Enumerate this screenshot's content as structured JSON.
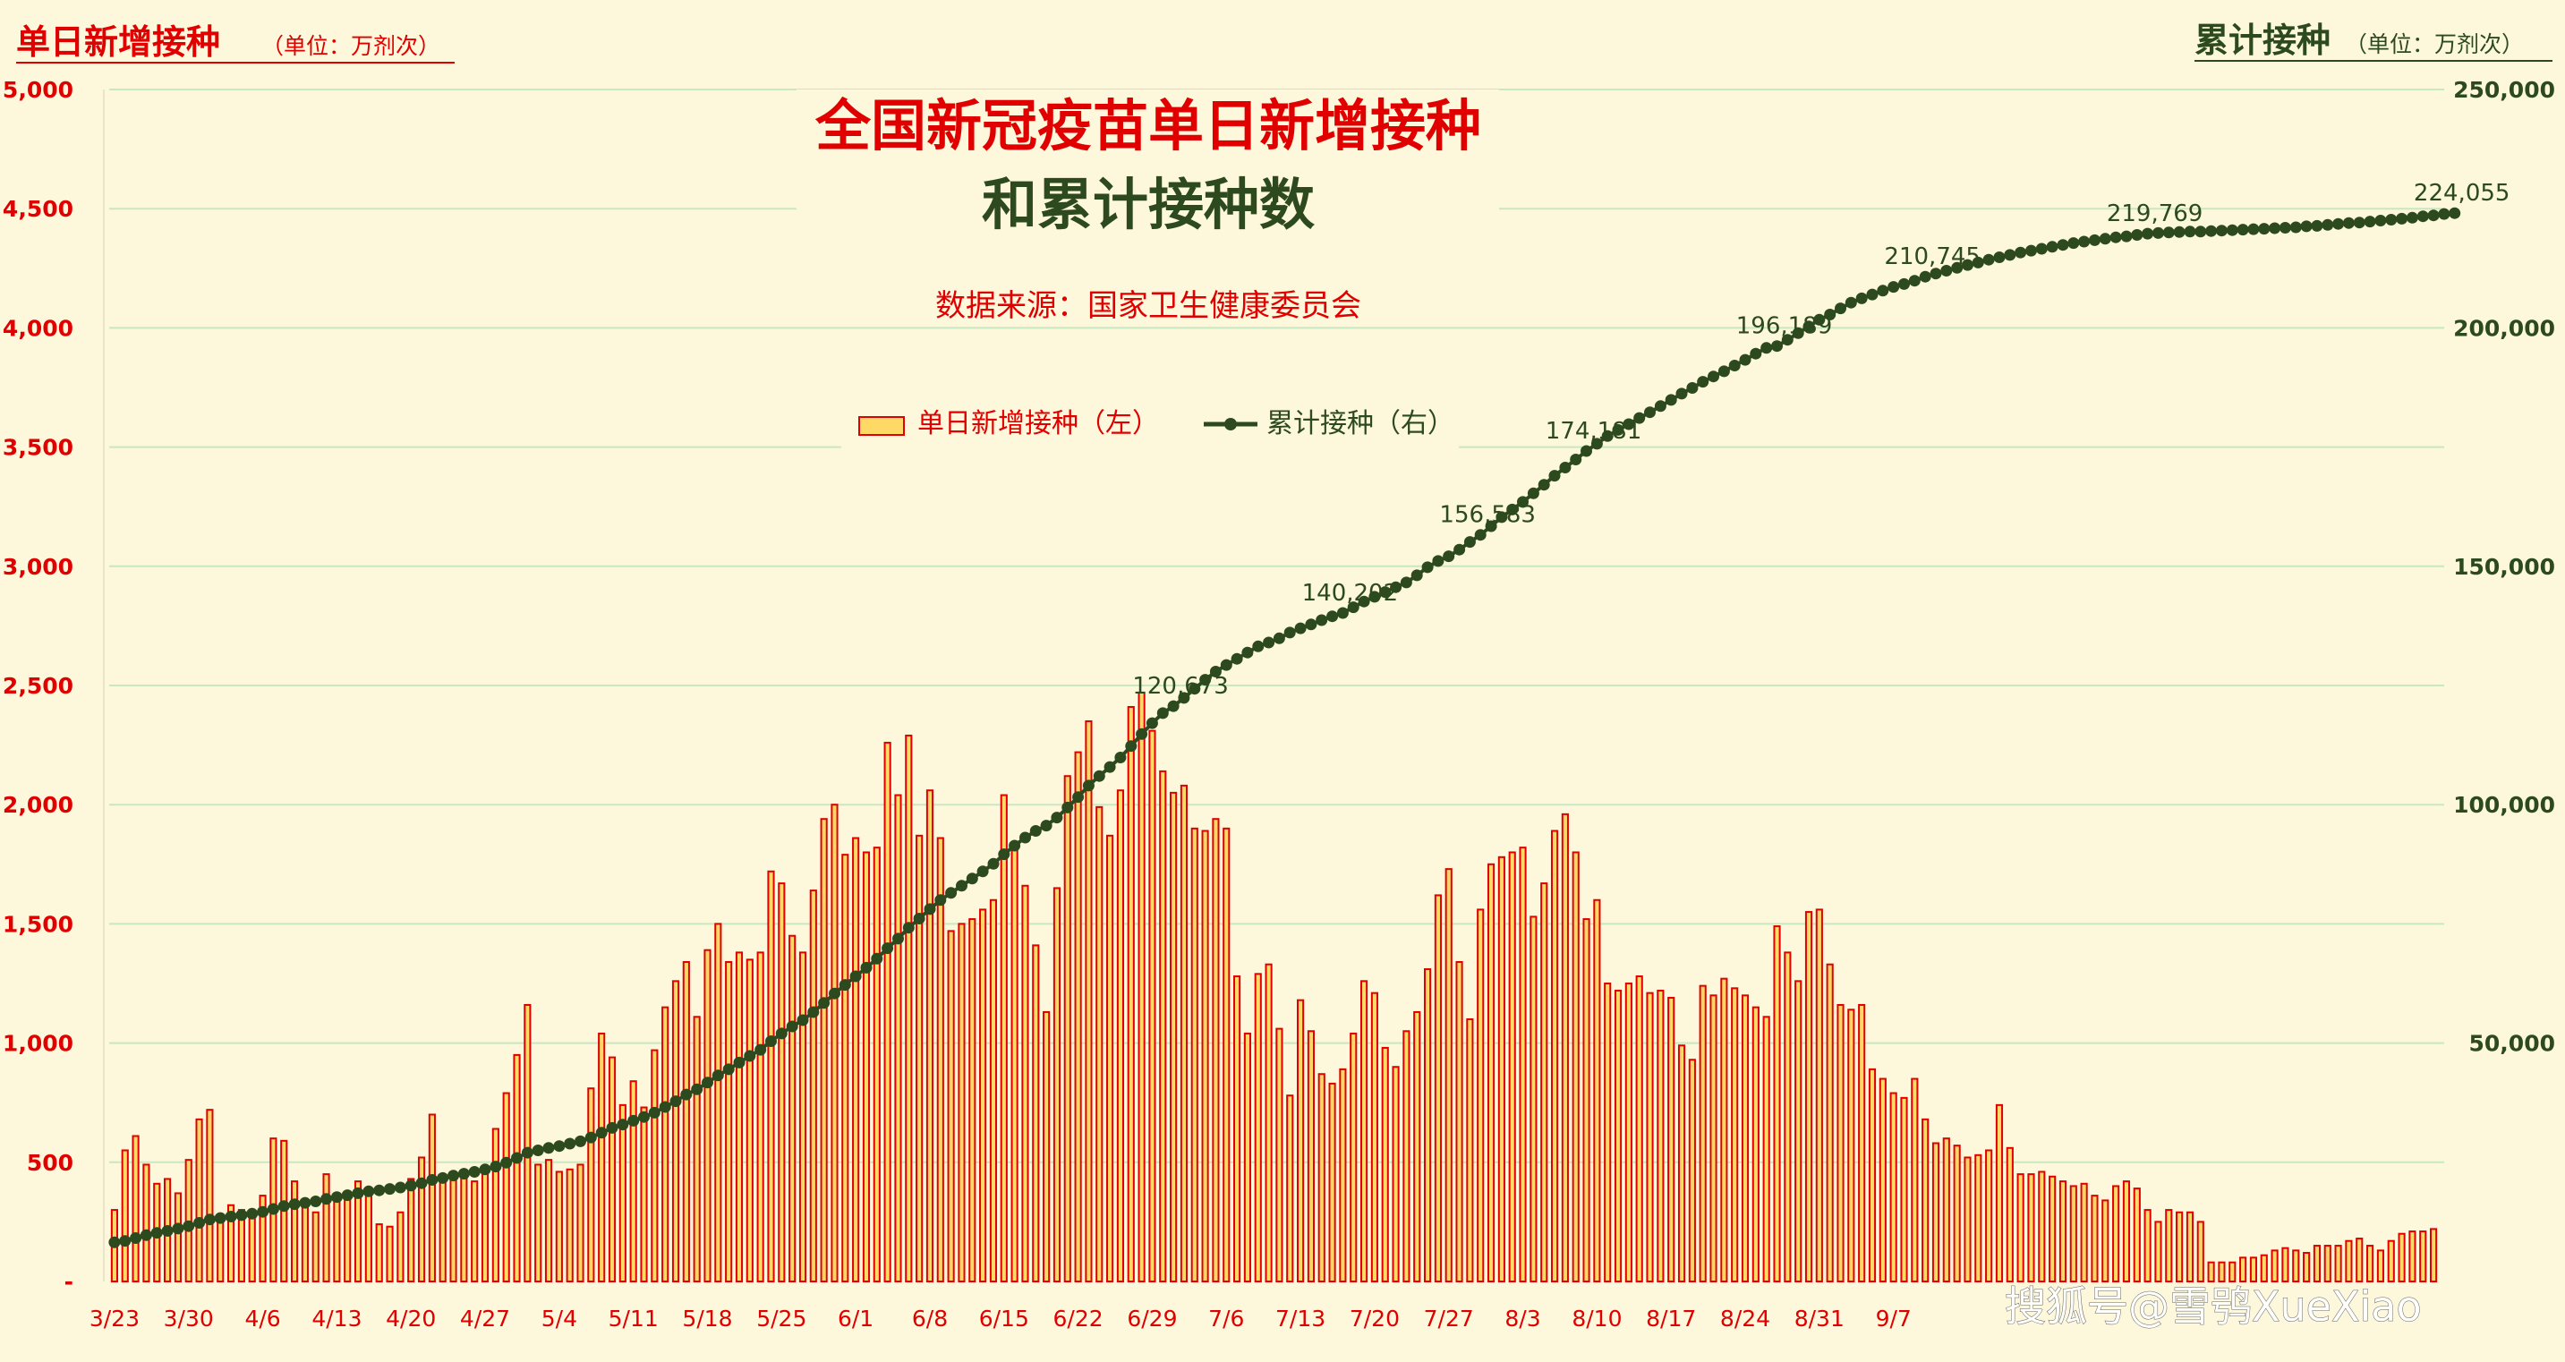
{
  "watermark": "搜狐号@雪鸮XueXiao",
  "chart_data": {
    "type": "bar+line",
    "title": "全国新冠疫苗单日新增接种",
    "title_line2": "和累计接种数",
    "source": "数据来源：国家卫生健康委员会",
    "y_left": {
      "label": "单日新增接种",
      "unit": "（单位：万剂次）",
      "range": [
        0,
        5000
      ],
      "ticks": [
        "-",
        "500",
        "1,000",
        "1,500",
        "2,000",
        "2,500",
        "3,000",
        "3,500",
        "4,000",
        "4,500",
        "5,000"
      ],
      "color": "#e00000"
    },
    "y_right": {
      "label": "累计接种",
      "unit": "（单位：万剂次）",
      "range": [
        0,
        250000
      ],
      "ticks": [
        "",
        "50,000",
        "100,000",
        "150,000",
        "200,000",
        "250,000"
      ],
      "color": "#2d4a1e"
    },
    "grid": "horizontal",
    "legend": {
      "position": "top-center",
      "entries": [
        {
          "label": "单日新增接种（左）",
          "color": "#ffd966",
          "edge": "#e00000",
          "kind": "bar"
        },
        {
          "label": "累计接种（右）",
          "color": "#2d4a1e",
          "kind": "line-marker"
        }
      ]
    },
    "x_tick_labels": [
      "3/23",
      "3/30",
      "4/6",
      "4/13",
      "4/20",
      "4/27",
      "5/4",
      "5/11",
      "5/18",
      "5/25",
      "6/1",
      "6/8",
      "6/15",
      "6/22",
      "6/29",
      "7/6",
      "7/13",
      "7/20",
      "7/27",
      "8/3",
      "8/10",
      "8/17",
      "8/24",
      "8/31",
      "9/7"
    ],
    "series": [
      {
        "name": "单日新增接种（左）",
        "axis": "left",
        "values": [
          300,
          550,
          610,
          490,
          410,
          430,
          370,
          510,
          680,
          720,
          280,
          320,
          300,
          280,
          360,
          600,
          590,
          420,
          320,
          290,
          450,
          370,
          370,
          420,
          370,
          240,
          230,
          290,
          430,
          520,
          700,
          420,
          450,
          450,
          420,
          460,
          640,
          790,
          950,
          1160,
          490,
          510,
          460,
          470,
          490,
          810,
          1040,
          940,
          740,
          840,
          730,
          970,
          1150,
          1260,
          1340,
          1110,
          1390,
          1500,
          1340,
          1380,
          1350,
          1380,
          1720,
          1670,
          1450,
          1380,
          1640,
          1940,
          2000,
          1790,
          1860,
          1800,
          1820,
          2260,
          2040,
          2290,
          1870,
          2060,
          1860,
          1470,
          1500,
          1520,
          1560,
          1600,
          2040,
          1810,
          1660,
          1410,
          1130,
          1650,
          2120,
          2220,
          2350,
          1990,
          1870,
          2060,
          2410,
          2470,
          2310,
          2140,
          2050,
          2080,
          1900,
          1890,
          1940,
          1900,
          1280,
          1040,
          1290,
          1330,
          1060,
          780,
          1180,
          1050,
          870,
          830,
          890,
          1040,
          1260,
          1210,
          980,
          900,
          1050,
          1130,
          1310,
          1620,
          1730,
          1340,
          1100,
          1560,
          1750,
          1780,
          1800,
          1820,
          1530,
          1670,
          1890,
          1960,
          1800,
          1520,
          1600,
          1250,
          1220,
          1250,
          1280,
          1210,
          1220,
          1190,
          990,
          930,
          1240,
          1200,
          1270,
          1230,
          1200,
          1150,
          1110,
          1490,
          1380,
          1260,
          1550,
          1560,
          1330,
          1160,
          1140,
          1160,
          890,
          850,
          790,
          770,
          850,
          680,
          580,
          600,
          570,
          520,
          530,
          550,
          740,
          560,
          450,
          450,
          460,
          440,
          420,
          400,
          410,
          360,
          340,
          400,
          420,
          390,
          300,
          250,
          300,
          290,
          290,
          250,
          80,
          80,
          80,
          100,
          100,
          110,
          130,
          140,
          130,
          120,
          150,
          150,
          150,
          170,
          180,
          150,
          130,
          170,
          200,
          210,
          210,
          220
        ]
      },
      {
        "name": "累计接种（右）",
        "axis": "right",
        "values": [
          8200,
          8500,
          9100,
          9700,
          10200,
          10600,
          11100,
          11600,
          12300,
          13000,
          13300,
          13600,
          13900,
          14200,
          14600,
          15200,
          15800,
          16200,
          16500,
          16800,
          17300,
          17700,
          18100,
          18500,
          18900,
          19100,
          19400,
          19700,
          20100,
          20600,
          21300,
          21700,
          22200,
          22600,
          23000,
          23500,
          24100,
          24900,
          25900,
          27000,
          27500,
          28000,
          28400,
          28900,
          29400,
          30200,
          31200,
          32200,
          32900,
          33700,
          34500,
          35400,
          36600,
          37800,
          39200,
          40300,
          41700,
          43200,
          44500,
          45900,
          47300,
          48600,
          50400,
          52000,
          53500,
          54800,
          56500,
          58400,
          60400,
          62200,
          64000,
          65800,
          67700,
          69900,
          71900,
          74200,
          76100,
          78100,
          80000,
          81500,
          83000,
          84500,
          86000,
          87600,
          89600,
          91400,
          93100,
          94500,
          95600,
          97300,
          99400,
          101600,
          104000,
          106000,
          107900,
          109900,
          112300,
          114800,
          117100,
          119200,
          120673,
          122400,
          124300,
          126200,
          127900,
          129300,
          130600,
          131900,
          133200,
          134000,
          134900,
          136100,
          137000,
          137800,
          138700,
          139500,
          140202,
          141400,
          142600,
          143600,
          144600,
          145600,
          146600,
          148100,
          149800,
          151100,
          152100,
          153500,
          155100,
          156583,
          158400,
          160300,
          161900,
          163500,
          165300,
          167100,
          169000,
          170700,
          172400,
          174181,
          175700,
          177300,
          178600,
          179800,
          181100,
          182300,
          183600,
          184900,
          186200,
          187400,
          188700,
          189800,
          190900,
          192100,
          193300,
          194600,
          195800,
          196189,
          197500,
          198900,
          200300,
          201700,
          202800,
          204100,
          205300,
          206200,
          207000,
          207800,
          208600,
          209200,
          209900,
          210745,
          211400,
          212000,
          212600,
          213200,
          213700,
          214300,
          214800,
          215300,
          215800,
          216200,
          216600,
          217000,
          217400,
          217800,
          218100,
          218400,
          218700,
          219000,
          219200,
          219500,
          219769,
          219900,
          220000,
          220100,
          220200,
          220200,
          220300,
          220400,
          220500,
          220600,
          220700,
          220800,
          220900,
          221000,
          221100,
          221300,
          221400,
          221600,
          221800,
          222000,
          222100,
          222300,
          222500,
          222700,
          222900,
          223100,
          223400,
          223600,
          223900,
          224055
        ]
      }
    ],
    "annotations": [
      "120,673",
      "140,202",
      "156,583",
      "174,181",
      "196,189",
      "210,745",
      "219,769",
      "224,055"
    ]
  }
}
